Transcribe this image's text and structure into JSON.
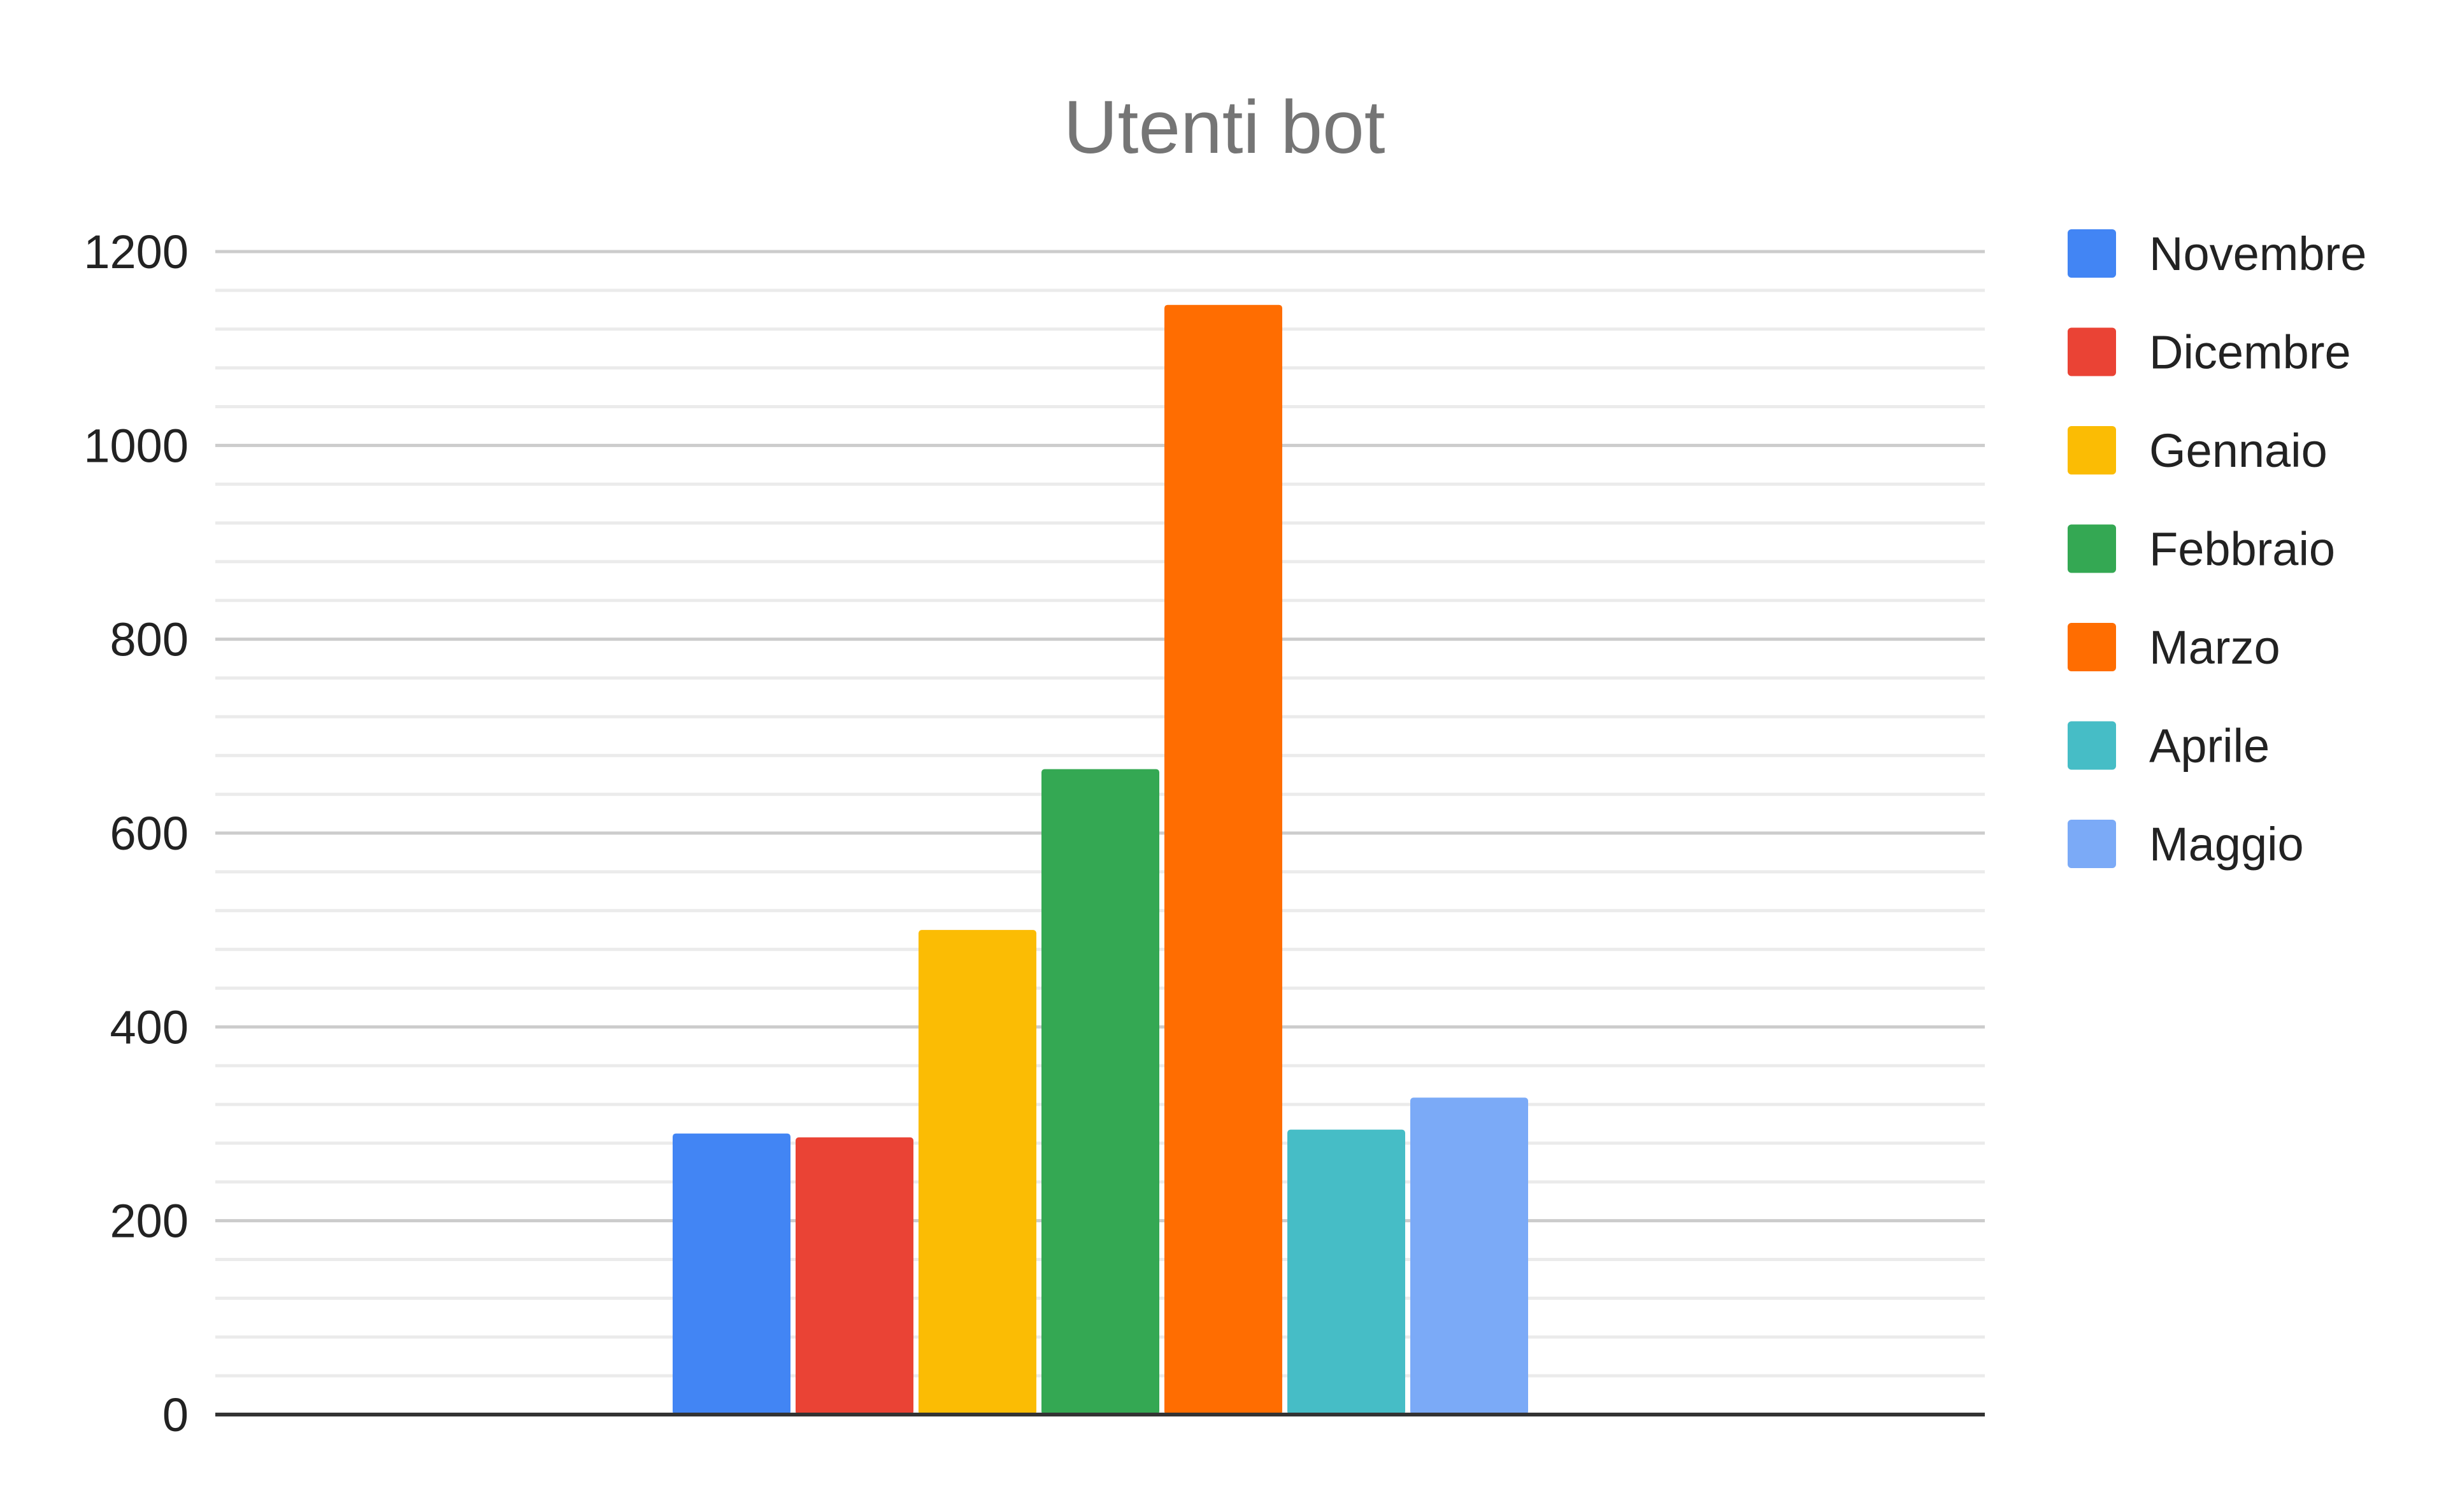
{
  "chart_data": {
    "type": "bar",
    "title": "Utenti bot",
    "xlabel": "",
    "ylabel": "",
    "categories": [
      ""
    ],
    "series": [
      {
        "name": "Novembre",
        "values": [
          290
        ],
        "color": "#4285f4"
      },
      {
        "name": "Dicembre",
        "values": [
          286
        ],
        "color": "#ea4335"
      },
      {
        "name": "Gennaio",
        "values": [
          500
        ],
        "color": "#fbbc04"
      },
      {
        "name": "Febbraio",
        "values": [
          666
        ],
        "color": "#34a853"
      },
      {
        "name": "Marzo",
        "values": [
          1145
        ],
        "color": "#ff6d01"
      },
      {
        "name": "Aprile",
        "values": [
          294
        ],
        "color": "#46bdc6"
      },
      {
        "name": "Maggio",
        "values": [
          327
        ],
        "color": "#7baaf7"
      }
    ],
    "ylim": [
      0,
      1200
    ],
    "yticks": [
      0,
      200,
      400,
      600,
      800,
      1000,
      1200
    ],
    "minor_gridlines_per_major": 4,
    "grid": true,
    "legend_position": "right"
  }
}
